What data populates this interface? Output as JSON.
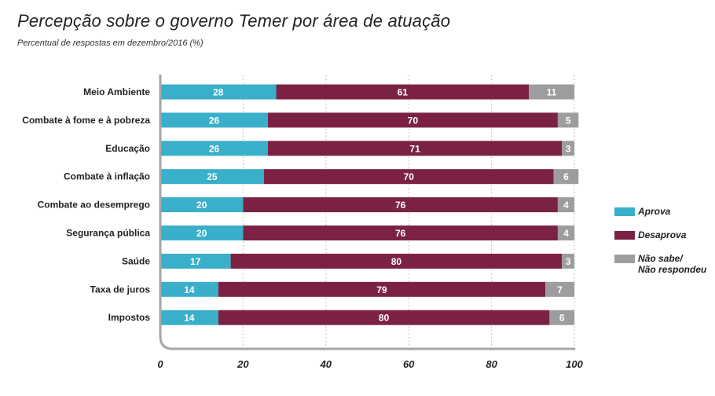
{
  "chart_data": {
    "type": "bar",
    "orientation": "horizontal",
    "stacked": true,
    "title": "Percepção sobre o governo Temer por área de atuação",
    "subtitle": "Percentual de respostas em dezembro/2016 (%)",
    "categories": [
      "Meio Ambiente",
      "Combate à fome e à pobreza",
      "Educação",
      "Combate à inflação",
      "Combate ao desemprego",
      "Segurança pública",
      "Saúde",
      "Taxa de juros",
      "Impostos"
    ],
    "series": [
      {
        "name": "Aprova",
        "color": "#3aafc9",
        "values": [
          28,
          26,
          26,
          25,
          20,
          20,
          17,
          14,
          14
        ]
      },
      {
        "name": "Desaprova",
        "color": "#7b2244",
        "values": [
          61,
          70,
          71,
          70,
          76,
          76,
          80,
          79,
          80
        ]
      },
      {
        "name": "Não sabe/\nNão respondeu",
        "color": "#9d9d9f",
        "values": [
          11,
          5,
          3,
          6,
          4,
          4,
          3,
          7,
          6
        ]
      }
    ],
    "xlim": [
      0,
      100
    ],
    "xticks": [
      0,
      20,
      40,
      60,
      80,
      100
    ],
    "grid": true,
    "legend": "right"
  }
}
